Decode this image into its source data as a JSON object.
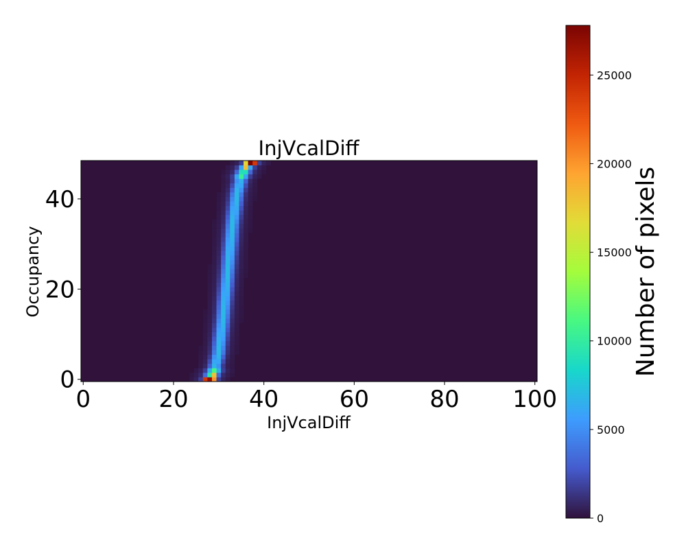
{
  "chart_data": {
    "type": "heatmap",
    "title": "InjVcalDiff",
    "xlabel": "InjVcalDiff",
    "ylabel": "Occupancy",
    "x_range": [
      0,
      100
    ],
    "y_range": [
      0,
      48
    ],
    "x_bins": 100,
    "y_bins": 49,
    "x_ticks": [
      0,
      20,
      40,
      60,
      80,
      100
    ],
    "y_ticks": [
      0,
      20,
      40
    ],
    "background_count": 0,
    "colorbar": {
      "label": "Number of pixels",
      "colormap": "turbo",
      "range": [
        0,
        27800
      ],
      "ticks": [
        0,
        5000,
        10000,
        15000,
        20000,
        25000
      ]
    },
    "ridge_centers": [
      {
        "occupancy": 0,
        "injvcaldiff": 28
      },
      {
        "occupancy": 2,
        "injvcaldiff": 29
      },
      {
        "occupancy": 6,
        "injvcaldiff": 30
      },
      {
        "occupancy": 14,
        "injvcaldiff": 31
      },
      {
        "occupancy": 24,
        "injvcaldiff": 32
      },
      {
        "occupancy": 34,
        "injvcaldiff": 33
      },
      {
        "occupancy": 41,
        "injvcaldiff": 34
      },
      {
        "occupancy": 45,
        "injvcaldiff": 35
      },
      {
        "occupancy": 47,
        "injvcaldiff": 36
      },
      {
        "occupancy": 48,
        "injvcaldiff": 37
      }
    ],
    "hotspots": [
      {
        "injvcaldiff": 28,
        "occupancy": 0,
        "count": 27000
      },
      {
        "injvcaldiff": 27,
        "occupancy": 0,
        "count": 24000
      },
      {
        "injvcaldiff": 29,
        "occupancy": 0,
        "count": 20000
      },
      {
        "injvcaldiff": 29,
        "occupancy": 1,
        "count": 18000
      },
      {
        "injvcaldiff": 37,
        "occupancy": 48,
        "count": 27800
      },
      {
        "injvcaldiff": 38,
        "occupancy": 48,
        "count": 24000
      },
      {
        "injvcaldiff": 36,
        "occupancy": 48,
        "count": 17000
      },
      {
        "injvcaldiff": 36,
        "occupancy": 47,
        "count": 18000
      }
    ]
  }
}
